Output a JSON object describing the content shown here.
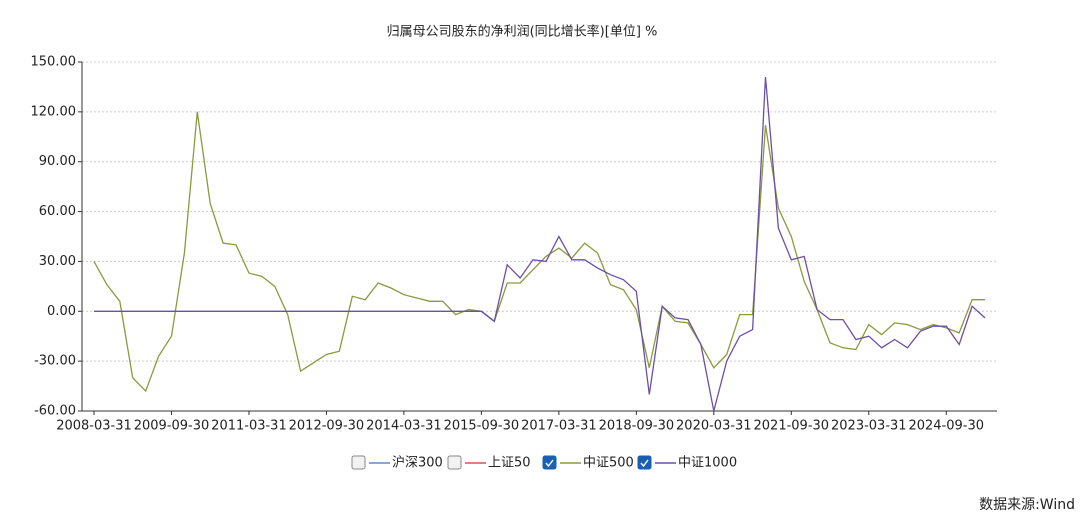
{
  "chart_data": {
    "type": "line",
    "title": "归属母公司股东的净利润(同比增长率)[单位] %",
    "source": "数据来源:Wind",
    "categories": [
      "2008-03-31",
      null,
      null,
      null,
      null,
      null,
      "2009-09-30",
      null,
      null,
      null,
      null,
      null,
      "2011-03-31",
      null,
      null,
      null,
      null,
      null,
      "2012-09-30",
      null,
      null,
      null,
      null,
      null,
      "2014-03-31",
      null,
      null,
      null,
      null,
      null,
      "2015-09-30",
      null,
      null,
      null,
      null,
      null,
      "2017-03-31",
      null,
      null,
      null,
      null,
      null,
      "2018-09-30",
      null,
      null,
      null,
      null,
      null,
      "2020-03-31",
      null,
      null,
      null,
      null,
      null,
      "2021-09-30",
      null,
      null,
      null,
      null,
      null,
      "2023-03-31",
      null,
      null,
      null,
      null,
      null,
      "2024-09-30",
      null,
      null,
      null
    ],
    "series": [
      {
        "name": "沪深300",
        "color": "#5b8fc9",
        "checked": false
      },
      {
        "name": "上证50",
        "color": "#d9534f",
        "checked": false
      },
      {
        "name": "中证500",
        "color": "#8a9a3c",
        "checked": true,
        "values": [
          30,
          16,
          6,
          -40,
          -48,
          -27,
          -15,
          35,
          120,
          65,
          41,
          40,
          23,
          21,
          15,
          -2,
          -36,
          -31,
          -26,
          -24,
          9,
          7,
          17,
          14,
          10,
          8,
          6,
          6,
          -2,
          1,
          0,
          -6,
          17,
          17,
          25,
          33,
          38,
          32,
          41,
          35,
          16,
          13,
          1,
          -34,
          3,
          -6,
          -7,
          -20,
          -34,
          -26,
          -2,
          -2,
          112,
          62,
          45,
          18,
          1,
          -19,
          -22,
          -23,
          -8,
          -14,
          -7,
          -8,
          -11,
          -8,
          -10,
          -13,
          7,
          7
        ]
      },
      {
        "name": "中证1000",
        "color": "#6a50a8",
        "checked": true,
        "values": [
          0,
          0,
          0,
          0,
          0,
          0,
          0,
          0,
          0,
          0,
          0,
          0,
          0,
          0,
          0,
          0,
          0,
          0,
          0,
          0,
          0,
          0,
          0,
          0,
          0,
          0,
          0,
          0,
          0,
          0,
          0,
          -6,
          28,
          20,
          31,
          30,
          45,
          31,
          31,
          26,
          22,
          19,
          12,
          -50,
          3,
          -4,
          -5,
          -20,
          -60,
          -30,
          -15,
          -11,
          141,
          50,
          31,
          33,
          1,
          -5,
          -5,
          -17,
          -15,
          -22,
          -17,
          -22,
          -12,
          -9,
          -9,
          -20,
          3,
          -4
        ]
      }
    ],
    "ylim": [
      -60,
      150
    ],
    "yticks": [
      {
        "value": -60,
        "label": "-60.00"
      },
      {
        "value": -30,
        "label": "-30.00"
      },
      {
        "value": 0,
        "label": "0.00"
      },
      {
        "value": 30,
        "label": "30.00"
      },
      {
        "value": 60,
        "label": "60.00"
      },
      {
        "value": 90,
        "label": "90.00"
      },
      {
        "value": 120,
        "label": "120.00"
      },
      {
        "value": 150,
        "label": "150.00"
      }
    ],
    "grid": true
  }
}
